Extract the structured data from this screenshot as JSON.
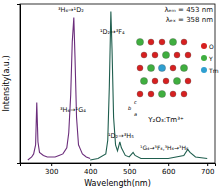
{
  "chart_data": {
    "type": "line",
    "x_label": "Wavelength(nm)",
    "y_label": "Intensity(a.u.)",
    "xlim": [
      220,
      720
    ],
    "xticks": [
      300,
      400,
      500,
      600,
      700
    ],
    "ylim": [
      0,
      1.05
    ],
    "yticks": [],
    "tick_labels": "x",
    "series": [
      {
        "color": "#6b2d7b",
        "x": [
          240,
          250,
          255,
          260,
          263,
          266,
          270,
          280,
          290,
          300,
          310,
          320,
          330,
          340,
          345,
          350,
          354,
          358,
          361,
          365,
          370,
          375,
          380,
          390,
          400
        ],
        "values": [
          0.02,
          0.04,
          0.06,
          0.12,
          0.4,
          0.14,
          0.07,
          0.05,
          0.04,
          0.04,
          0.04,
          0.05,
          0.06,
          0.1,
          0.2,
          0.45,
          0.8,
          0.96,
          0.7,
          0.3,
          0.12,
          0.09,
          0.06,
          0.04,
          0.03
        ]
      },
      {
        "color": "#1f5e4e",
        "x": [
          400,
          420,
          440,
          445,
          449,
          453,
          456,
          460,
          465,
          470,
          476,
          480,
          490,
          500,
          510,
          515,
          530,
          560,
          600,
          640,
          650,
          656,
          670,
          700
        ],
        "values": [
          0.02,
          0.03,
          0.06,
          0.15,
          0.5,
          1.0,
          0.75,
          0.3,
          0.12,
          0.08,
          0.14,
          0.1,
          0.05,
          0.04,
          0.07,
          0.05,
          0.03,
          0.03,
          0.03,
          0.05,
          0.09,
          0.07,
          0.04,
          0.03
        ]
      }
    ],
    "annotations": [
      "λₑₘ = 453 nm",
      "λₑₓ = 358 nm",
      "³H₆→¹D₂",
      "¹D₂→³F₄",
      "³H₆→¹G₄",
      "¹D₂→³H₅",
      "¹G₄→³F₄,³H₄→³H₆"
    ],
    "inset": {
      "title": "Y₂O₃:Tm³⁺",
      "legend": [
        "O",
        "Y",
        "Tm"
      ],
      "colors": [
        "#d62020",
        "#3fae3f",
        "#2f9fd0"
      ],
      "axes": [
        "a",
        "b",
        "c"
      ]
    }
  }
}
